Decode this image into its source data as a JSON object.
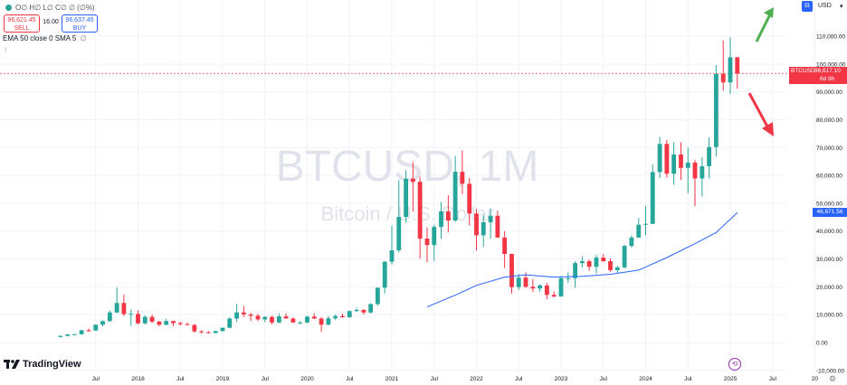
{
  "symbol": {
    "watermark_ticker": "BTCUSD, 1M",
    "watermark_name": "Bitcoin / U.S. Dollar",
    "ohlc_legend": "O∅ H∅ L∅ C∅ ∅ (∅%)"
  },
  "trade": {
    "sell_price": "96,621.45",
    "sell_label": "SELL",
    "spread": "16.00",
    "buy_price": "96,637.45",
    "buy_label": "BUY"
  },
  "indicators": {
    "label": "EMA 50 close 0 SMA 5",
    "eye_icon": "∅"
  },
  "currency": {
    "label": "USD",
    "icon": "currency-icon"
  },
  "last_price_tag": {
    "symbol": "BTCUSD",
    "price": "96,617.10",
    "countdown": "6d 9h"
  },
  "ema_tag": "46,671.56",
  "branding": "TradingView",
  "colors": {
    "up": "#26a69a",
    "down": "#f23645",
    "ema": "#2962ff",
    "arrow_up": "#4caf50",
    "arrow_down": "#f23645",
    "grid": "#f0f3fa",
    "axis_text": "#131722"
  },
  "chart_data": {
    "type": "candlestick",
    "title": "BTCUSD, 1M",
    "subtitle": "Bitcoin / U.S. Dollar",
    "y_ticks": [
      "110,000.00",
      "100,000.00",
      "90,000.00",
      "80,000.00",
      "70,000.00",
      "60,000.00",
      "50,000.00",
      "40,000.00",
      "30,000.00",
      "20,000.00",
      "10,000.00",
      "0.00",
      "-10,000.00"
    ],
    "y_tick_values": [
      110000,
      100000,
      90000,
      80000,
      70000,
      60000,
      50000,
      40000,
      30000,
      20000,
      10000,
      0,
      -10000
    ],
    "ylim": [
      -10000,
      118000
    ],
    "x_ticks": [
      {
        "label": "Jul",
        "m": 2017.5
      },
      {
        "label": "2018",
        "m": 2018.0
      },
      {
        "label": "Jul",
        "m": 2018.5
      },
      {
        "label": "2019",
        "m": 2019.0
      },
      {
        "label": "Jul",
        "m": 2019.5
      },
      {
        "label": "2020",
        "m": 2020.0
      },
      {
        "label": "Jul",
        "m": 2020.5
      },
      {
        "label": "2021",
        "m": 2021.0
      },
      {
        "label": "Jul",
        "m": 2021.5
      },
      {
        "label": "2022",
        "m": 2022.0
      },
      {
        "label": "Jul",
        "m": 2022.5
      },
      {
        "label": "2023",
        "m": 2023.0
      },
      {
        "label": "Jul",
        "m": 2023.5
      },
      {
        "label": "2024",
        "m": 2024.0
      },
      {
        "label": "Jul",
        "m": 2024.5
      },
      {
        "label": "2025",
        "m": 2025.0
      },
      {
        "label": "Jul",
        "m": 2025.5
      },
      {
        "label": "20",
        "m": 2026.0
      }
    ],
    "candles": [
      {
        "t": 2017.083,
        "o": 2000,
        "h": 2500,
        "l": 1800,
        "c": 2400
      },
      {
        "t": 2017.167,
        "o": 2400,
        "h": 3000,
        "l": 2200,
        "c": 2900
      },
      {
        "t": 2017.25,
        "o": 2900,
        "h": 3100,
        "l": 2600,
        "c": 3000
      },
      {
        "t": 2017.333,
        "o": 3000,
        "h": 4500,
        "l": 2800,
        "c": 4400
      },
      {
        "t": 2017.417,
        "o": 4400,
        "h": 5000,
        "l": 3900,
        "c": 4300
      },
      {
        "t": 2017.5,
        "o": 4300,
        "h": 6500,
        "l": 4200,
        "c": 6400
      },
      {
        "t": 2017.583,
        "o": 6400,
        "h": 7900,
        "l": 5800,
        "c": 7700
      },
      {
        "t": 2017.667,
        "o": 7700,
        "h": 11500,
        "l": 7400,
        "c": 10800
      },
      {
        "t": 2017.75,
        "o": 10800,
        "h": 19800,
        "l": 10500,
        "c": 14200
      },
      {
        "t": 2017.833,
        "o": 14200,
        "h": 17300,
        "l": 9500,
        "c": 10200
      },
      {
        "t": 2017.917,
        "o": 10200,
        "h": 11800,
        "l": 6000,
        "c": 10300
      },
      {
        "t": 2018.0,
        "o": 10300,
        "h": 11600,
        "l": 6500,
        "c": 6900
      },
      {
        "t": 2018.083,
        "o": 6900,
        "h": 9800,
        "l": 6400,
        "c": 9200
      },
      {
        "t": 2018.167,
        "o": 9200,
        "h": 10000,
        "l": 7000,
        "c": 7500
      },
      {
        "t": 2018.25,
        "o": 7500,
        "h": 7800,
        "l": 5800,
        "c": 6400
      },
      {
        "t": 2018.333,
        "o": 6400,
        "h": 8500,
        "l": 6100,
        "c": 7700
      },
      {
        "t": 2018.417,
        "o": 7700,
        "h": 7800,
        "l": 5900,
        "c": 7000
      },
      {
        "t": 2018.5,
        "o": 7000,
        "h": 7400,
        "l": 6100,
        "c": 6600
      },
      {
        "t": 2018.583,
        "o": 6600,
        "h": 7200,
        "l": 6200,
        "c": 6300
      },
      {
        "t": 2018.667,
        "o": 6300,
        "h": 6600,
        "l": 3500,
        "c": 4000
      },
      {
        "t": 2018.75,
        "o": 4000,
        "h": 4400,
        "l": 3200,
        "c": 3700
      },
      {
        "t": 2018.833,
        "o": 3700,
        "h": 4100,
        "l": 3300,
        "c": 3400
      },
      {
        "t": 2018.917,
        "o": 3400,
        "h": 4200,
        "l": 3350,
        "c": 4100
      },
      {
        "t": 2019.0,
        "o": 4100,
        "h": 5400,
        "l": 4000,
        "c": 5300
      },
      {
        "t": 2019.083,
        "o": 5300,
        "h": 9100,
        "l": 5200,
        "c": 8600
      },
      {
        "t": 2019.167,
        "o": 8600,
        "h": 13900,
        "l": 7500,
        "c": 10800
      },
      {
        "t": 2019.25,
        "o": 10800,
        "h": 13100,
        "l": 9100,
        "c": 10100
      },
      {
        "t": 2019.333,
        "o": 10100,
        "h": 10600,
        "l": 7700,
        "c": 9600
      },
      {
        "t": 2019.417,
        "o": 9600,
        "h": 10400,
        "l": 7700,
        "c": 8300
      },
      {
        "t": 2019.5,
        "o": 8300,
        "h": 9400,
        "l": 7300,
        "c": 9200
      },
      {
        "t": 2019.583,
        "o": 9200,
        "h": 9600,
        "l": 6500,
        "c": 7200
      },
      {
        "t": 2019.667,
        "o": 7200,
        "h": 10400,
        "l": 6900,
        "c": 9400
      },
      {
        "t": 2019.75,
        "o": 9400,
        "h": 10500,
        "l": 8600,
        "c": 8600
      },
      {
        "t": 2019.833,
        "o": 8600,
        "h": 9100,
        "l": 7000,
        "c": 7200
      },
      {
        "t": 2019.917,
        "o": 7200,
        "h": 7700,
        "l": 6500,
        "c": 7200
      },
      {
        "t": 2020.0,
        "o": 7200,
        "h": 9600,
        "l": 6900,
        "c": 9300
      },
      {
        "t": 2020.083,
        "o": 9300,
        "h": 10500,
        "l": 8500,
        "c": 8600
      },
      {
        "t": 2020.167,
        "o": 8600,
        "h": 9200,
        "l": 3800,
        "c": 6400
      },
      {
        "t": 2020.25,
        "o": 6400,
        "h": 9500,
        "l": 6200,
        "c": 8700
      },
      {
        "t": 2020.333,
        "o": 8700,
        "h": 10100,
        "l": 8100,
        "c": 9500
      },
      {
        "t": 2020.417,
        "o": 9500,
        "h": 10400,
        "l": 8900,
        "c": 9100
      },
      {
        "t": 2020.5,
        "o": 9100,
        "h": 11500,
        "l": 8900,
        "c": 11300
      },
      {
        "t": 2020.583,
        "o": 11300,
        "h": 12500,
        "l": 11000,
        "c": 11700
      },
      {
        "t": 2020.667,
        "o": 11700,
        "h": 12000,
        "l": 10000,
        "c": 10800
      },
      {
        "t": 2020.75,
        "o": 10800,
        "h": 14100,
        "l": 10400,
        "c": 13800
      },
      {
        "t": 2020.833,
        "o": 13800,
        "h": 19500,
        "l": 13200,
        "c": 19700
      },
      {
        "t": 2020.917,
        "o": 19700,
        "h": 29300,
        "l": 17600,
        "c": 29000
      },
      {
        "t": 2021.0,
        "o": 29000,
        "h": 41900,
        "l": 28000,
        "c": 33100
      },
      {
        "t": 2021.083,
        "o": 33100,
        "h": 58300,
        "l": 32300,
        "c": 45100
      },
      {
        "t": 2021.167,
        "o": 45100,
        "h": 61800,
        "l": 43000,
        "c": 58800
      },
      {
        "t": 2021.25,
        "o": 58800,
        "h": 64800,
        "l": 47000,
        "c": 57700
      },
      {
        "t": 2021.333,
        "o": 57700,
        "h": 59500,
        "l": 30000,
        "c": 37300
      },
      {
        "t": 2021.417,
        "o": 37300,
        "h": 41300,
        "l": 28800,
        "c": 35000
      },
      {
        "t": 2021.5,
        "o": 35000,
        "h": 42300,
        "l": 29300,
        "c": 41500
      },
      {
        "t": 2021.583,
        "o": 41500,
        "h": 50500,
        "l": 37300,
        "c": 47100
      },
      {
        "t": 2021.667,
        "o": 47100,
        "h": 52900,
        "l": 39600,
        "c": 43800
      },
      {
        "t": 2021.75,
        "o": 43800,
        "h": 67000,
        "l": 43300,
        "c": 61300
      },
      {
        "t": 2021.833,
        "o": 61300,
        "h": 69000,
        "l": 53300,
        "c": 57000
      },
      {
        "t": 2021.917,
        "o": 57000,
        "h": 59100,
        "l": 42000,
        "c": 46300
      },
      {
        "t": 2022.0,
        "o": 46300,
        "h": 48000,
        "l": 33000,
        "c": 38500
      },
      {
        "t": 2022.083,
        "o": 38500,
        "h": 45800,
        "l": 34300,
        "c": 43200
      },
      {
        "t": 2022.167,
        "o": 43200,
        "h": 48200,
        "l": 37200,
        "c": 45500
      },
      {
        "t": 2022.25,
        "o": 45500,
        "h": 47400,
        "l": 37600,
        "c": 37700
      },
      {
        "t": 2022.333,
        "o": 37700,
        "h": 40000,
        "l": 26700,
        "c": 31800
      },
      {
        "t": 2022.417,
        "o": 31800,
        "h": 31900,
        "l": 17600,
        "c": 19900
      },
      {
        "t": 2022.5,
        "o": 19900,
        "h": 24600,
        "l": 18900,
        "c": 23300
      },
      {
        "t": 2022.583,
        "o": 23300,
        "h": 25200,
        "l": 19600,
        "c": 20000
      },
      {
        "t": 2022.667,
        "o": 20000,
        "h": 22800,
        "l": 18100,
        "c": 19400
      },
      {
        "t": 2022.75,
        "o": 19400,
        "h": 21000,
        "l": 18200,
        "c": 20500
      },
      {
        "t": 2022.833,
        "o": 20500,
        "h": 21400,
        "l": 15500,
        "c": 17100
      },
      {
        "t": 2022.917,
        "o": 17100,
        "h": 18400,
        "l": 16300,
        "c": 16500
      },
      {
        "t": 2023.0,
        "o": 16500,
        "h": 23900,
        "l": 16500,
        "c": 23100
      },
      {
        "t": 2023.083,
        "o": 23100,
        "h": 25200,
        "l": 21400,
        "c": 23100
      },
      {
        "t": 2023.167,
        "o": 23100,
        "h": 29200,
        "l": 19600,
        "c": 28500
      },
      {
        "t": 2023.25,
        "o": 28500,
        "h": 31000,
        "l": 26900,
        "c": 29200
      },
      {
        "t": 2023.333,
        "o": 29200,
        "h": 29800,
        "l": 25800,
        "c": 27200
      },
      {
        "t": 2023.417,
        "o": 27200,
        "h": 31400,
        "l": 24800,
        "c": 30500
      },
      {
        "t": 2023.5,
        "o": 30500,
        "h": 31800,
        "l": 29000,
        "c": 29200
      },
      {
        "t": 2023.583,
        "o": 29200,
        "h": 30200,
        "l": 25400,
        "c": 26000
      },
      {
        "t": 2023.667,
        "o": 26000,
        "h": 27500,
        "l": 24900,
        "c": 27000
      },
      {
        "t": 2023.75,
        "o": 27000,
        "h": 35000,
        "l": 26500,
        "c": 34700
      },
      {
        "t": 2023.833,
        "o": 34700,
        "h": 38400,
        "l": 34100,
        "c": 37700
      },
      {
        "t": 2023.917,
        "o": 37700,
        "h": 44700,
        "l": 37600,
        "c": 42300
      },
      {
        "t": 2024.0,
        "o": 42300,
        "h": 48900,
        "l": 38500,
        "c": 42600
      },
      {
        "t": 2024.083,
        "o": 42600,
        "h": 64000,
        "l": 42500,
        "c": 61200
      },
      {
        "t": 2024.167,
        "o": 61200,
        "h": 73800,
        "l": 59000,
        "c": 71300
      },
      {
        "t": 2024.25,
        "o": 71300,
        "h": 72700,
        "l": 59200,
        "c": 60600
      },
      {
        "t": 2024.333,
        "o": 60600,
        "h": 71900,
        "l": 56600,
        "c": 67500
      },
      {
        "t": 2024.417,
        "o": 67500,
        "h": 71900,
        "l": 58400,
        "c": 62700
      },
      {
        "t": 2024.5,
        "o": 62700,
        "h": 70000,
        "l": 53500,
        "c": 64600
      },
      {
        "t": 2024.583,
        "o": 64600,
        "h": 65600,
        "l": 49000,
        "c": 58900
      },
      {
        "t": 2024.667,
        "o": 58900,
        "h": 66500,
        "l": 52500,
        "c": 63300
      },
      {
        "t": 2024.75,
        "o": 63300,
        "h": 73600,
        "l": 58900,
        "c": 70200
      },
      {
        "t": 2024.833,
        "o": 70200,
        "h": 99600,
        "l": 66800,
        "c": 96400
      },
      {
        "t": 2024.917,
        "o": 96400,
        "h": 108400,
        "l": 90500,
        "c": 93400
      },
      {
        "t": 2025.0,
        "o": 93400,
        "h": 109600,
        "l": 89200,
        "c": 102400
      },
      {
        "t": 2025.083,
        "o": 102400,
        "h": 102600,
        "l": 91200,
        "c": 96617
      }
    ],
    "ema": [
      {
        "t": 2021.417,
        "v": 12800
      },
      {
        "t": 2021.75,
        "v": 17000
      },
      {
        "t": 2022.0,
        "v": 20500
      },
      {
        "t": 2022.333,
        "v": 23500
      },
      {
        "t": 2022.583,
        "v": 24300
      },
      {
        "t": 2022.917,
        "v": 23500
      },
      {
        "t": 2023.25,
        "v": 23800
      },
      {
        "t": 2023.583,
        "v": 24500
      },
      {
        "t": 2023.917,
        "v": 26000
      },
      {
        "t": 2024.25,
        "v": 30500
      },
      {
        "t": 2024.583,
        "v": 35500
      },
      {
        "t": 2024.833,
        "v": 39500
      },
      {
        "t": 2025.083,
        "v": 46671.56
      }
    ],
    "last_price": 96617.1,
    "grid": true
  }
}
